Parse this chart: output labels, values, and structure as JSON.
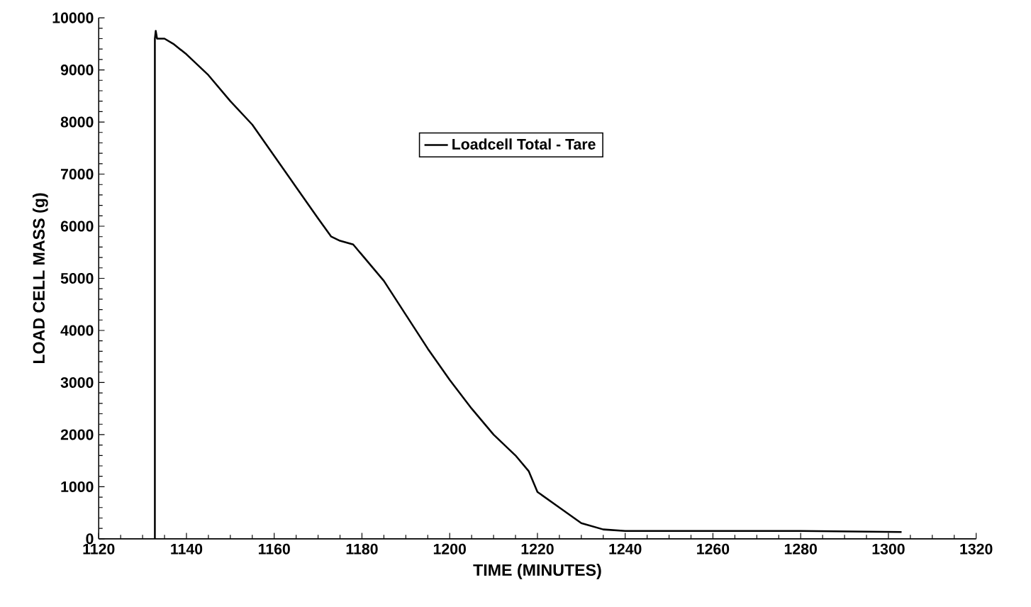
{
  "chart_data": {
    "type": "line",
    "xlabel": "TIME (MINUTES)",
    "ylabel": "LOAD CELL MASS (g)",
    "xlim": [
      1120,
      1320
    ],
    "ylim": [
      0,
      10000
    ],
    "xticks": [
      1120,
      1140,
      1160,
      1180,
      1200,
      1220,
      1240,
      1260,
      1280,
      1300,
      1320
    ],
    "yticks": [
      0,
      1000,
      2000,
      3000,
      4000,
      5000,
      6000,
      7000,
      8000,
      9000,
      10000
    ],
    "grid": false,
    "legend": "top",
    "marker": "none",
    "line_style": "solid",
    "series": [
      {
        "name": "Loadcell Total - Tare",
        "color": "#000000",
        "x": [
          1132.8,
          1132.8,
          1133,
          1133.3,
          1135,
          1137,
          1140,
          1145,
          1150,
          1155,
          1160,
          1165,
          1170,
          1173,
          1175,
          1178,
          1180,
          1185,
          1190,
          1195,
          1200,
          1205,
          1210,
          1215,
          1218,
          1219,
          1220,
          1225,
          1230,
          1235,
          1240,
          1260,
          1280,
          1303
        ],
        "values": [
          0,
          9600,
          9750,
          9600,
          9600,
          9500,
          9300,
          8900,
          8400,
          7950,
          7350,
          6750,
          6150,
          5800,
          5720,
          5650,
          5450,
          4950,
          4300,
          3650,
          3050,
          2500,
          2000,
          1600,
          1300,
          1100,
          900,
          600,
          300,
          180,
          150,
          150,
          150,
          130
        ]
      }
    ]
  }
}
